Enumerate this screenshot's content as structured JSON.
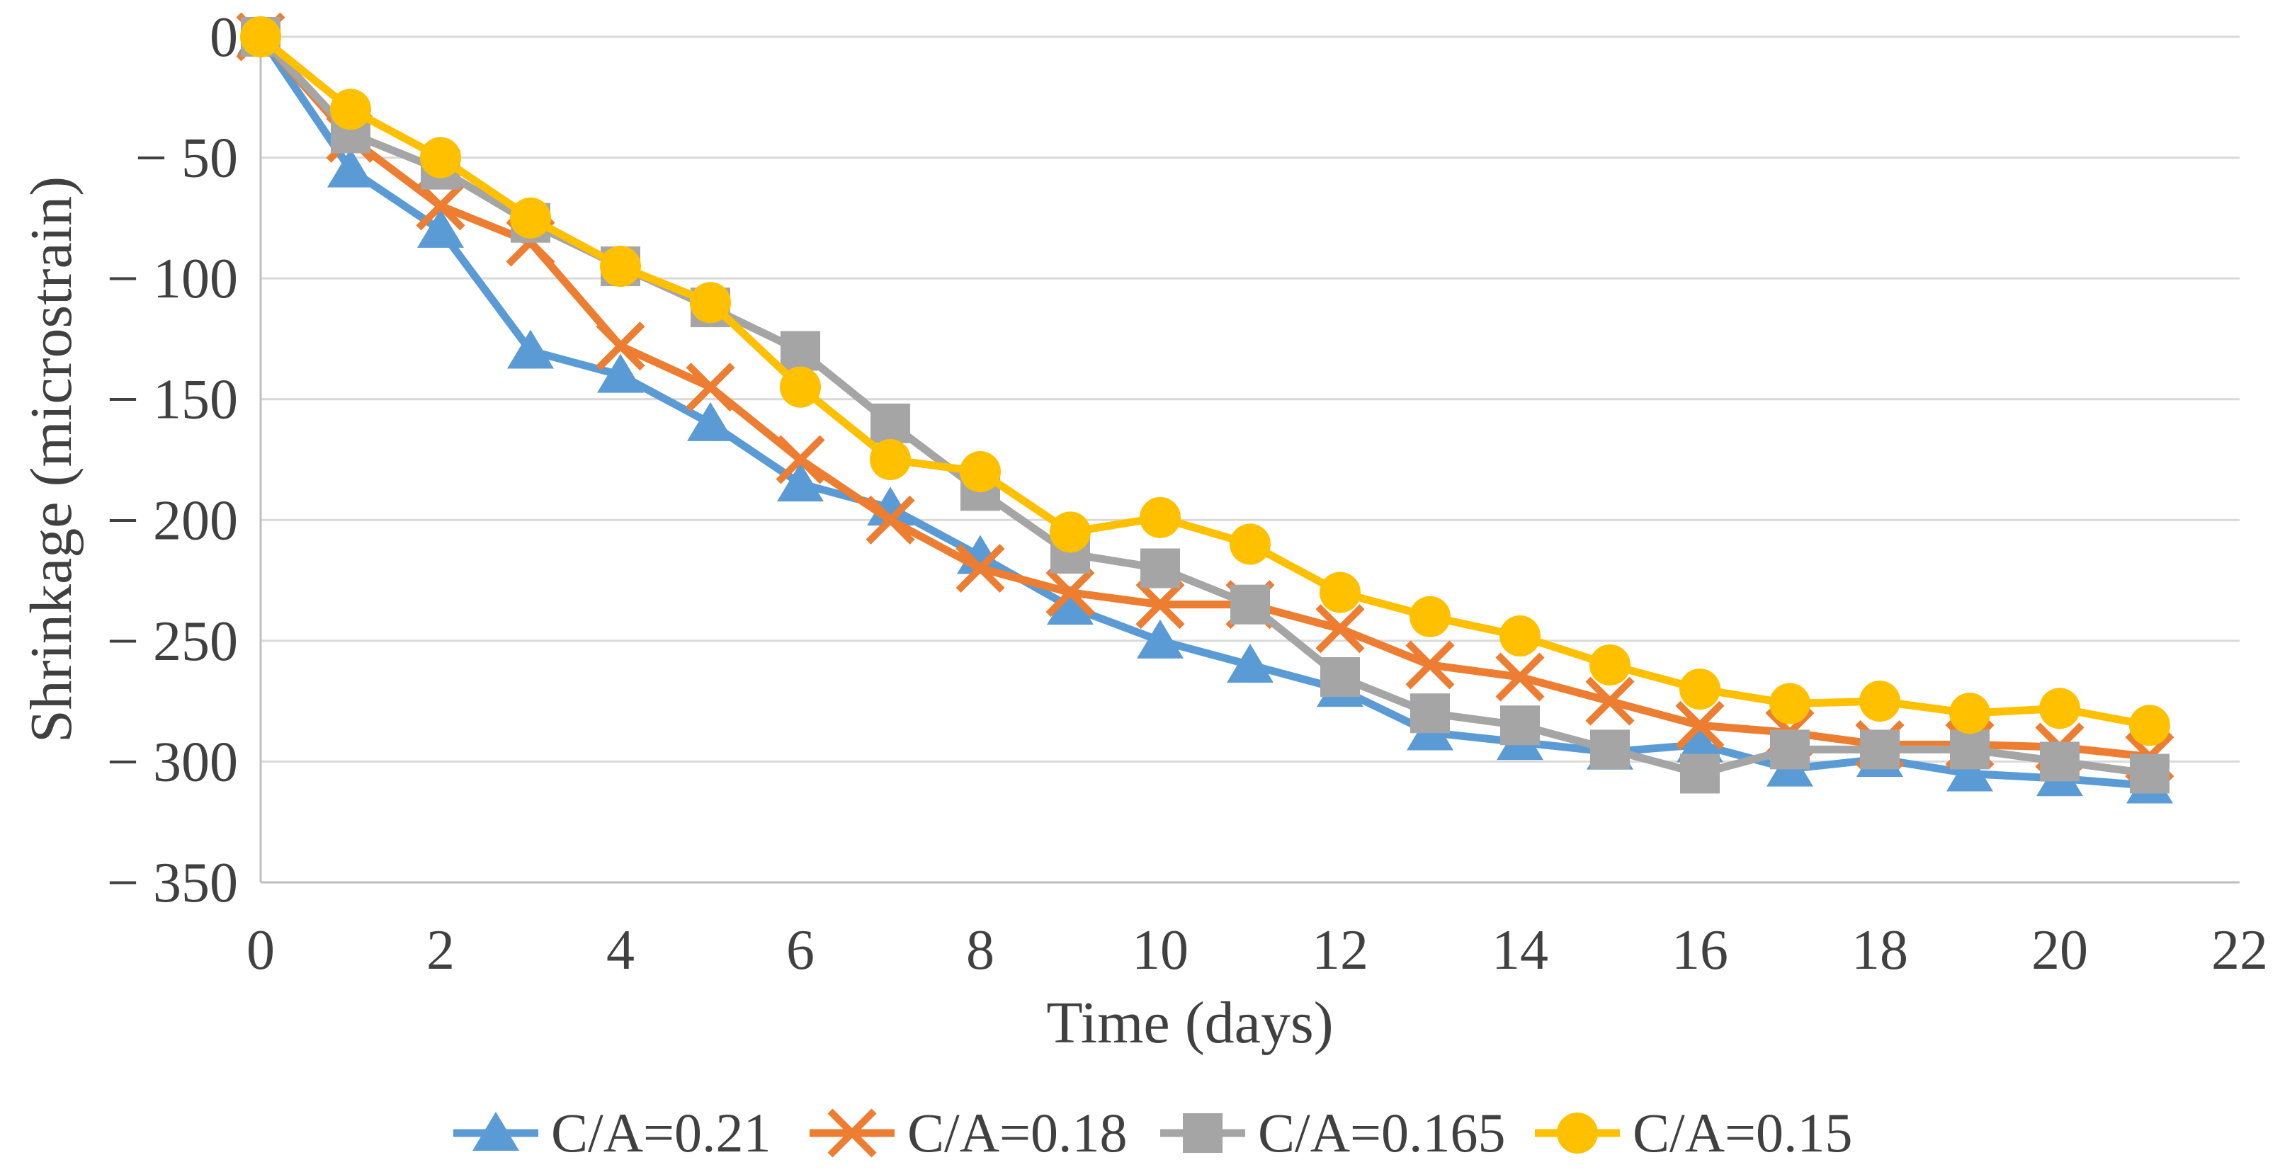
{
  "page": {
    "background": "#ffffff"
  },
  "chart_data": {
    "type": "line",
    "title": "",
    "xlabel": "Time (days)",
    "ylabel": "Shrinkage (microstrain)",
    "x": [
      0,
      1,
      2,
      3,
      4,
      5,
      6,
      7,
      8,
      9,
      10,
      11,
      12,
      13,
      14,
      15,
      16,
      17,
      18,
      19,
      20,
      21
    ],
    "series": [
      {
        "name": "C/A=0.21",
        "marker": "triangle",
        "color": "#5B9BD5",
        "values": [
          0,
          -55,
          -80,
          -130,
          -140,
          -160,
          -185,
          -195,
          -215,
          -236,
          -250,
          -260,
          -270,
          -288,
          -292,
          -296,
          -293,
          -303,
          -299,
          -305,
          -307,
          -310
        ]
      },
      {
        "name": "C/A=0.18",
        "marker": "x",
        "color": "#ED7D31",
        "values": [
          0,
          -42,
          -70,
          -85,
          -128,
          -145,
          -175,
          -200,
          -220,
          -230,
          -235,
          -235,
          -245,
          -260,
          -265,
          -275,
          -285,
          -288,
          -293,
          -293,
          -294,
          -298
        ]
      },
      {
        "name": "C/A=0.165",
        "marker": "square",
        "color": "#A5A5A5",
        "values": [
          0,
          -40,
          -55,
          -77,
          -95,
          -112,
          -130,
          -160,
          -188,
          -214,
          -220,
          -235,
          -265,
          -280,
          -285,
          -295,
          -305,
          -295,
          -295,
          -295,
          -300,
          -305
        ]
      },
      {
        "name": "C/A=0.15",
        "marker": "circle",
        "color": "#FFC000",
        "values": [
          0,
          -30,
          -50,
          -75,
          -95,
          -110,
          -145,
          -175,
          -180,
          -205,
          -199,
          -210,
          -230,
          -240,
          -248,
          -260,
          -270,
          -276,
          -275,
          -280,
          -278,
          -285
        ]
      }
    ],
    "xlim": [
      0,
      22
    ],
    "ylim": [
      -350,
      0
    ],
    "xticks": [
      0,
      2,
      4,
      6,
      8,
      10,
      12,
      14,
      16,
      18,
      20,
      22
    ],
    "xtick_labels": [
      "0",
      "2",
      "4",
      "6",
      "8",
      "10",
      "12",
      "14",
      "16",
      "18",
      "20",
      "22"
    ],
    "yticks": [
      0,
      -50,
      -100,
      -150,
      -200,
      -250,
      -300,
      -350
    ],
    "ytick_labels": [
      "0",
      "− 50",
      "− 100",
      "− 150",
      "− 200",
      "− 250",
      "− 300",
      "− 350"
    ],
    "grid": true,
    "legend_position": "bottom",
    "colors": {
      "gridline": "#D9D9D9",
      "axis_line": "#BFBFBF",
      "text": "#404040"
    }
  }
}
